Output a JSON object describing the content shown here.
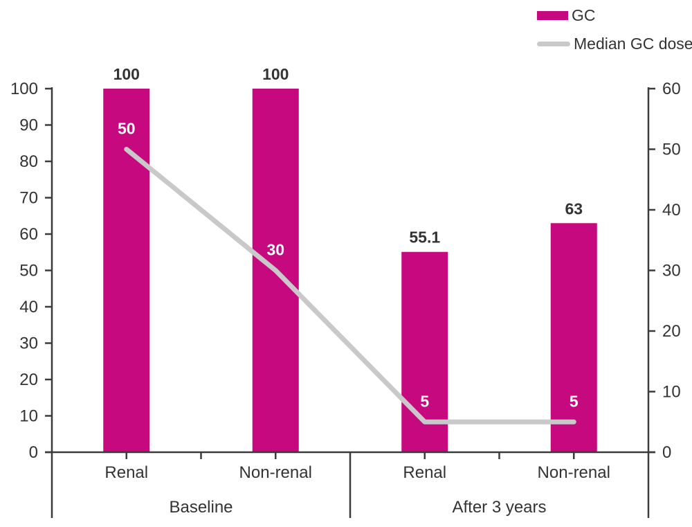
{
  "chart_data": {
    "type": "bar",
    "title": "",
    "categories": [
      "Renal",
      "Non-renal",
      "Renal",
      "Non-renal"
    ],
    "groups": [
      {
        "label": "Baseline",
        "start": 0,
        "end": 2
      },
      {
        "label": "After 3 years",
        "start": 2,
        "end": 4
      }
    ],
    "series": [
      {
        "name": "GC",
        "type": "bar",
        "axis": "left",
        "color": "#c6097e",
        "values": [
          100,
          100,
          55.1,
          63
        ],
        "value_labels": [
          "100",
          "100",
          "55.1",
          "63"
        ],
        "value_label_color": "#333333"
      },
      {
        "name": "Median GC dose",
        "type": "line",
        "axis": "right",
        "color": "#c9c9c9",
        "values": [
          50,
          30,
          5,
          5
        ],
        "value_labels": [
          "50",
          "30",
          "5",
          "5"
        ],
        "value_label_color": "#ffffff"
      }
    ],
    "left_axis": {
      "min": 0,
      "max": 100,
      "step": 10,
      "tick_labels": [
        "0",
        "10",
        "20",
        "30",
        "40",
        "50",
        "60",
        "70",
        "80",
        "90",
        "100"
      ]
    },
    "right_axis": {
      "min": 0,
      "max": 60,
      "step": 10,
      "tick_labels": [
        "0",
        "10",
        "20",
        "30",
        "40",
        "50",
        "60"
      ]
    },
    "legend_position": "top-right",
    "grid": false,
    "background": "#ffffff",
    "text_color": "#333333",
    "axis_color": "#3b3b3b"
  }
}
